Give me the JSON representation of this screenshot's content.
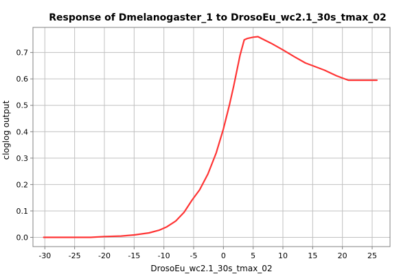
{
  "chart_data": {
    "type": "line",
    "title": "Response of Dmelanogaster_1 to DrosoEu_wc2.1_30s_tmax_02",
    "xlabel": "DrosoEu_wc2.1_30s_tmax_02",
    "ylabel": "cloglog output",
    "xlim": [
      -32,
      28
    ],
    "ylim": [
      -0.035,
      0.795
    ],
    "x_ticks": [
      -30,
      -25,
      -20,
      -15,
      -10,
      -5,
      0,
      5,
      10,
      15,
      20,
      25
    ],
    "y_ticks": [
      0.0,
      0.1,
      0.2,
      0.3,
      0.4,
      0.5,
      0.6,
      0.7
    ],
    "x_tick_labels": [
      "-30",
      "-25",
      "-20",
      "-15",
      "-10",
      "-5",
      "0",
      "5",
      "10",
      "15",
      "20",
      "25"
    ],
    "y_tick_labels": [
      "0.0",
      "0.1",
      "0.2",
      "0.3",
      "0.4",
      "0.5",
      "0.6",
      "0.7"
    ],
    "grid": true,
    "line_color": "#ff3333",
    "grid_color": "#c0c0c0",
    "series": [
      {
        "x": [
          -30.2,
          -22.3,
          -20,
          -17.2,
          -15,
          -12.5,
          -10.8,
          -9.5,
          -8,
          -6.6,
          -5.3,
          -4,
          -2.6,
          -1.2,
          0,
          1,
          1.7,
          2.8,
          3.5,
          4,
          5,
          5.8,
          6.5,
          8,
          10,
          12,
          13.8,
          15,
          17,
          19,
          21,
          25.8
        ],
        "y": [
          0.0,
          0.0,
          0.003,
          0.005,
          0.009,
          0.017,
          0.027,
          0.04,
          0.062,
          0.095,
          0.14,
          0.18,
          0.24,
          0.32,
          0.41,
          0.5,
          0.57,
          0.69,
          0.748,
          0.753,
          0.758,
          0.76,
          0.752,
          0.735,
          0.71,
          0.683,
          0.66,
          0.65,
          0.633,
          0.612,
          0.595,
          0.595
        ]
      }
    ]
  }
}
